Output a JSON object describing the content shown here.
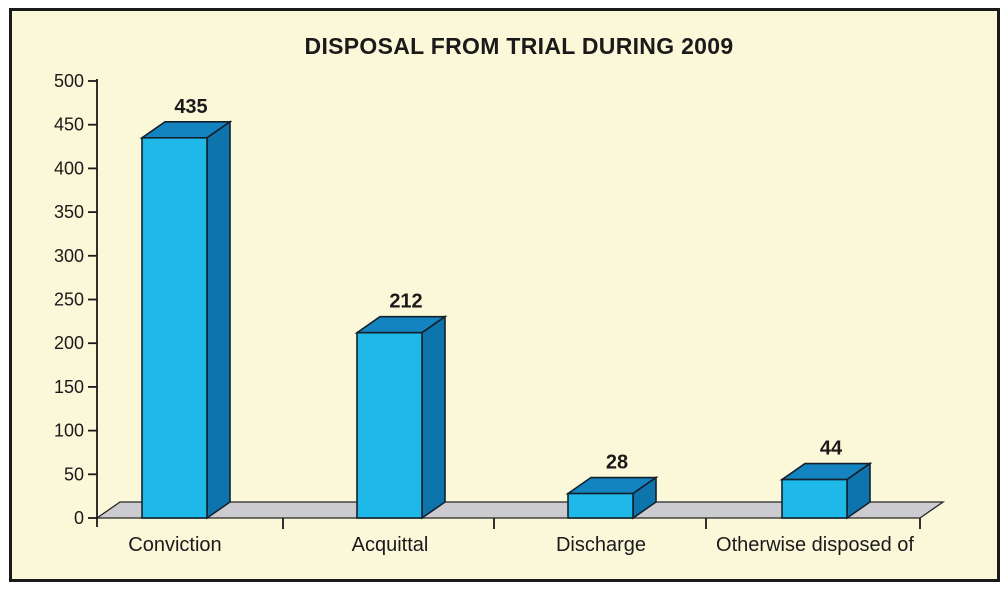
{
  "chart_data": {
    "type": "bar",
    "style": "3d-column",
    "title": "DISPOSAL FROM TRIAL DURING 2009",
    "categories": [
      "Conviction",
      "Acquittal",
      "Discharge",
      "Otherwise disposed of"
    ],
    "values": [
      435,
      212,
      28,
      44
    ],
    "data_labels": [
      "435",
      "212",
      "28",
      "44"
    ],
    "ylim": [
      0,
      500
    ],
    "ytick_labels": [
      "0",
      "50",
      "100",
      "150",
      "200",
      "250",
      "300",
      "350",
      "400",
      "450",
      "500"
    ],
    "xlabel": "",
    "ylabel": "",
    "grid": false,
    "legend": false,
    "colors": {
      "background": "#FBF7D9",
      "outer_margin": "#FFFFFF",
      "frame_border": "#1A1A1A",
      "bar_front": "#1EB9E9",
      "bar_top": "#1484C0",
      "bar_side": "#0E74AC",
      "bar_outline": "#14212C",
      "floor": "#CBCBD0",
      "floor_outline": "#262626",
      "text": "#1A1A1A"
    }
  }
}
